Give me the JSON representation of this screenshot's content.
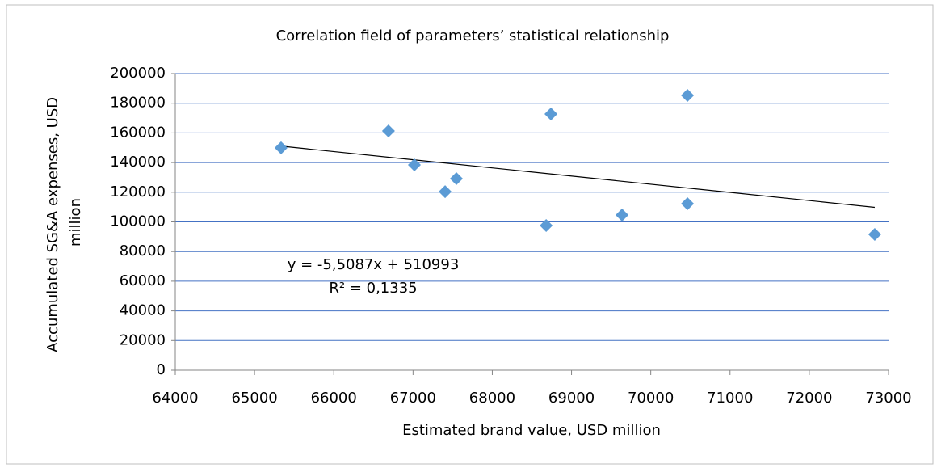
{
  "chart_data": {
    "type": "scatter",
    "title": "Correlation field of parameters’ statistical relationship",
    "xlabel": "Estimated brand value, USD million",
    "ylabel": [
      "Accumulated SG&A expenses, USD",
      "million"
    ],
    "series": [
      {
        "color": "#5b9bd5",
        "x": [
          65335,
          66690,
          67017,
          67405,
          67547,
          68740,
          68680,
          69637,
          70463,
          70463,
          72826
        ],
        "values": [
          149900,
          161300,
          138400,
          120400,
          129150,
          172750,
          97550,
          104630,
          185300,
          112260,
          91550
        ]
      }
    ],
    "trendline": {
      "slope": -5.5087,
      "intercept": 510993,
      "color": "#000000",
      "equation": "y = -5,5087x + 510993",
      "r2": "R² = 0,1335"
    },
    "xlim": [
      64000,
      73000
    ],
    "xticks": [
      64000,
      65000,
      66000,
      67000,
      68000,
      69000,
      70000,
      71000,
      72000,
      73000
    ],
    "ylim": [
      0,
      200000
    ],
    "yticks": [
      0,
      20000,
      40000,
      60000,
      80000,
      100000,
      120000,
      140000,
      160000,
      180000,
      200000
    ],
    "grid": true,
    "grid_color": "#4472c4"
  }
}
